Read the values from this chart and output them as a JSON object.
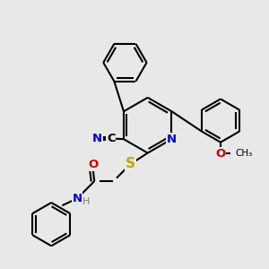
{
  "background_color": "#e8e8e8",
  "atom_colors": {
    "C": "#000000",
    "N": "#0000cc",
    "O": "#cc0000",
    "S": "#bbaa00",
    "H": "#808080"
  },
  "bond_color": "#000000",
  "line_width": 1.5,
  "fig_size": [
    3.0,
    3.0
  ],
  "dpi": 100
}
